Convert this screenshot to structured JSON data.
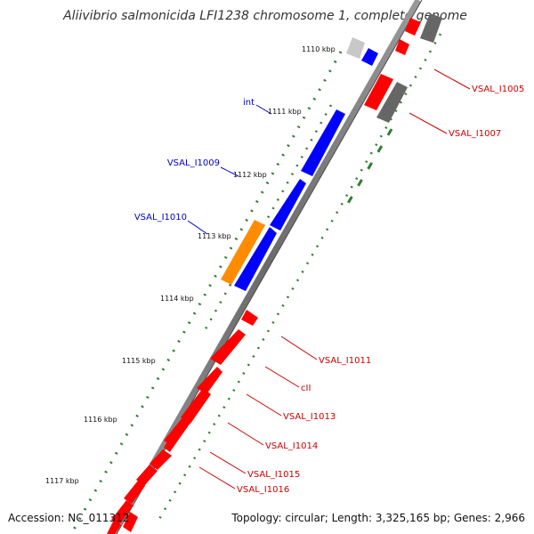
{
  "title": "Aliivibrio salmonicida LFI1238 chromosome 1, complete genome",
  "accession": "Accession: NC_011312",
  "summary": "Topology: circular; Length: 3,325,165 bp; Genes: 2,966",
  "colors": {
    "forward_gene": "#0000ff",
    "reverse_gene": "#ff0000",
    "highlight_gene": "#ff8c00",
    "other_feature": "#666666",
    "light_feature": "#c8c8c8",
    "backbone": "#7a7a7a",
    "ticks": "#2e7d32"
  },
  "position_markers": [
    "1110 kbp",
    "1111 kbp",
    "1112 kbp",
    "1113 kbp",
    "1114 kbp",
    "1115 kbp",
    "1116 kbp",
    "1117 kbp"
  ],
  "labels_left": [
    {
      "text": "int",
      "color": "#0000cc"
    },
    {
      "text": "VSAL_I1009",
      "color": "#0000cc"
    },
    {
      "text": "VSAL_I1010",
      "color": "#0000cc"
    }
  ],
  "labels_right": [
    {
      "text": "VSAL_I1005",
      "color": "#cc0000"
    },
    {
      "text": "VSAL_I1007",
      "color": "#cc0000"
    },
    {
      "text": "VSAL_I1011",
      "color": "#cc0000"
    },
    {
      "text": "cII",
      "color": "#cc0000"
    },
    {
      "text": "VSAL_I1013",
      "color": "#cc0000"
    },
    {
      "text": "VSAL_I1014",
      "color": "#cc0000"
    },
    {
      "text": "VSAL_I1015",
      "color": "#cc0000"
    },
    {
      "text": "VSAL_I1016",
      "color": "#cc0000"
    }
  ]
}
